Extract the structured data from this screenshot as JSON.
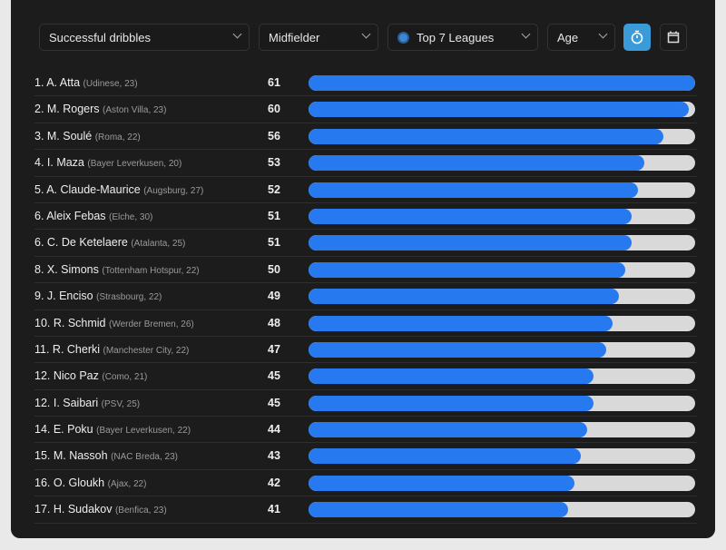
{
  "filters": {
    "metric": "Successful dribbles",
    "position": "Midfielder",
    "league": "Top 7 Leagues",
    "age": "Age"
  },
  "colors": {
    "accent": "#2779f0",
    "button_active": "#3b9bd9"
  },
  "max_value": 61,
  "rows": [
    {
      "name": "1. A. Atta",
      "meta": "(Udinese, 23)",
      "value": 61
    },
    {
      "name": "2. M. Rogers",
      "meta": "(Aston Villa, 23)",
      "value": 60
    },
    {
      "name": "3. M. Soulé",
      "meta": "(Roma, 22)",
      "value": 56
    },
    {
      "name": "4. I. Maza",
      "meta": "(Bayer Leverkusen, 20)",
      "value": 53
    },
    {
      "name": "5. A. Claude-Maurice",
      "meta": "(Augsburg, 27)",
      "value": 52
    },
    {
      "name": "6. Aleix Febas",
      "meta": "(Elche, 30)",
      "value": 51
    },
    {
      "name": "6. C. De Ketelaere",
      "meta": "(Atalanta, 25)",
      "value": 51
    },
    {
      "name": "8. X. Simons",
      "meta": "(Tottenham Hotspur, 22)",
      "value": 50
    },
    {
      "name": "9. J. Enciso",
      "meta": "(Strasbourg, 22)",
      "value": 49
    },
    {
      "name": "10. R. Schmid",
      "meta": "(Werder Bremen, 26)",
      "value": 48
    },
    {
      "name": "11. R. Cherki",
      "meta": "(Manchester City, 22)",
      "value": 47
    },
    {
      "name": "12. Nico Paz",
      "meta": "(Como, 21)",
      "value": 45
    },
    {
      "name": "12. I. Saibari",
      "meta": "(PSV, 25)",
      "value": 45
    },
    {
      "name": "14. E. Poku",
      "meta": "(Bayer Leverkusen, 22)",
      "value": 44
    },
    {
      "name": "15. M. Nassoh",
      "meta": "(NAC Breda, 23)",
      "value": 43
    },
    {
      "name": "16. O. Gloukh",
      "meta": "(Ajax, 22)",
      "value": 42
    },
    {
      "name": "17. H. Sudakov",
      "meta": "(Benfica, 23)",
      "value": 41
    }
  ]
}
